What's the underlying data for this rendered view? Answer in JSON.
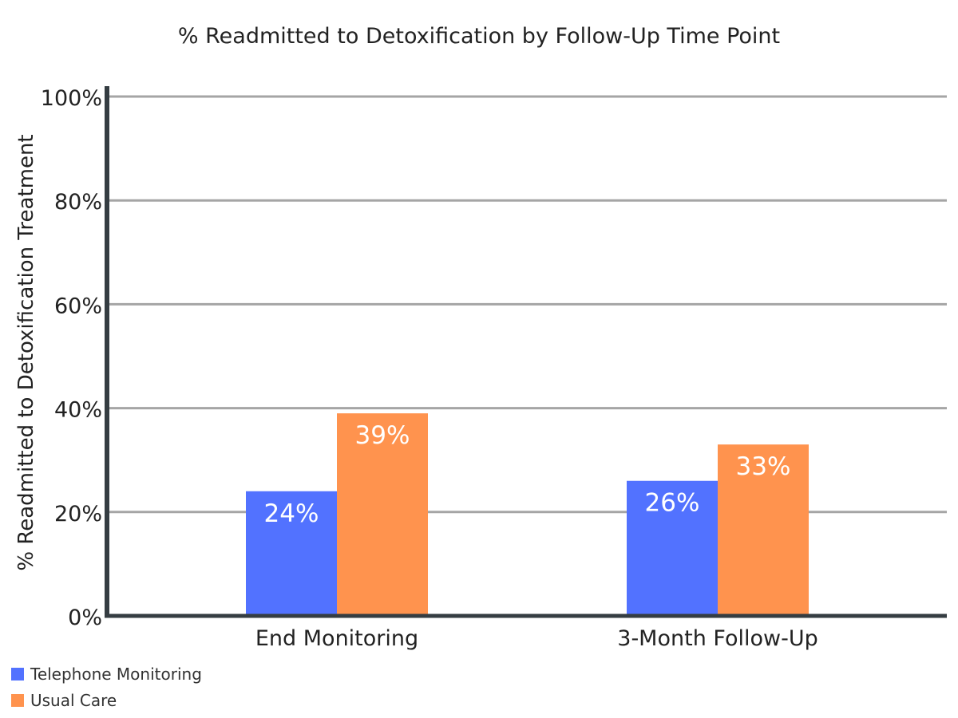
{
  "colors": {
    "telephone": "#5272FF",
    "usual": "#FF934E",
    "axis": "#353D42",
    "grid": "#A5A5A5",
    "text": "#222222"
  },
  "chart_data": {
    "type": "bar",
    "title": "% Readmitted to Detoxification by Follow-Up Time Point",
    "ylabel": "% Readmitted to Detoxification Treatment",
    "xlabel": "",
    "categories": [
      "End Monitoring",
      "3-Month Follow-Up"
    ],
    "series": [
      {
        "name": "Telephone Monitoring",
        "values": [
          24,
          26
        ],
        "labels": [
          "24%",
          "26%"
        ],
        "color": "#5272FF"
      },
      {
        "name": "Usual Care",
        "values": [
          39,
          33
        ],
        "labels": [
          "39%",
          "33%"
        ],
        "color": "#FF934E"
      }
    ],
    "ylim": [
      0,
      100
    ],
    "yticks": [
      0,
      20,
      40,
      60,
      80,
      100
    ],
    "ytick_labels": [
      "0%",
      "20%",
      "40%",
      "60%",
      "80%",
      "100%"
    ],
    "grid": true,
    "legend_position": "bottom-left"
  }
}
